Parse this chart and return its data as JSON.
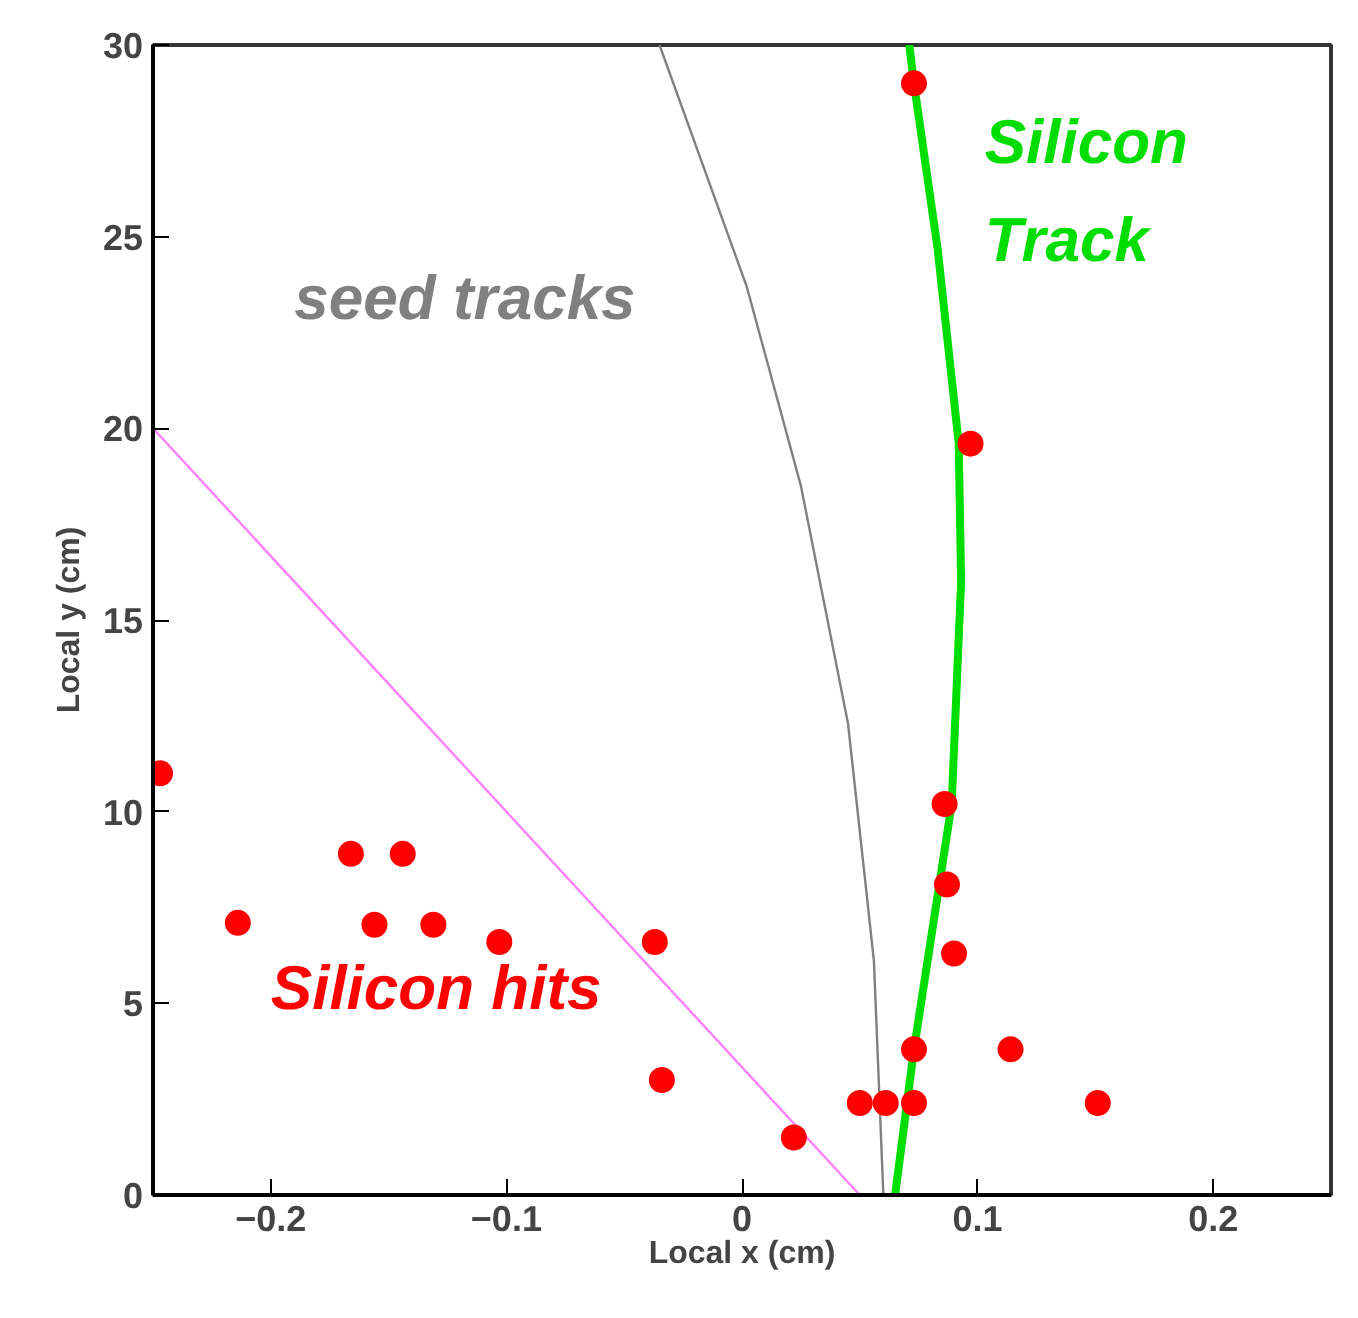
{
  "chart_data": {
    "type": "scatter",
    "xlabel": "Local x (cm)",
    "ylabel": "Local y (cm)",
    "xlim": [
      -0.25,
      0.25
    ],
    "xticks": [
      -0.2,
      -0.1,
      0,
      0.1,
      0.2
    ],
    "ylim": [
      0,
      30
    ],
    "yticks": [
      0,
      5,
      10,
      15,
      20,
      25,
      30
    ],
    "grid": false,
    "series": [
      {
        "name": "seed tracks",
        "type": "line",
        "color": "#808080",
        "x": [
          0.06,
          0.056,
          0.045,
          0.025,
          0.002,
          -0.035
        ],
        "values": [
          0,
          6.1,
          12.3,
          18.5,
          23.7,
          30
        ]
      },
      {
        "type": "line",
        "color": "#ff80ff",
        "x": [
          -0.25,
          0.05
        ],
        "values": [
          20,
          0
        ]
      },
      {
        "name": "Silicon Track",
        "type": "line",
        "color": "#00dd00",
        "x": [
          0.065,
          0.073,
          0.089,
          0.093,
          0.092,
          0.083,
          0.073,
          0.071
        ],
        "values": [
          0,
          3.8,
          10.2,
          16,
          19.6,
          24.7,
          29,
          30
        ]
      },
      {
        "name": "Silicon hits",
        "marker": "circle",
        "color": "#ff0000",
        "x": [
          -0.247,
          -0.214,
          -0.166,
          -0.144,
          -0.156,
          -0.131,
          -0.103,
          -0.037,
          -0.034,
          0.022,
          0.05,
          0.061,
          0.073,
          0.151,
          0.073,
          0.114,
          0.09,
          0.087,
          0.086,
          0.097,
          0.073
        ],
        "values": [
          11.0,
          7.1,
          8.9,
          8.9,
          7.05,
          7.05,
          6.6,
          6.6,
          3.0,
          1.5,
          2.4,
          2.4,
          2.4,
          2.4,
          3.8,
          3.8,
          6.3,
          8.1,
          10.2,
          19.6,
          29.0
        ]
      }
    ]
  }
}
